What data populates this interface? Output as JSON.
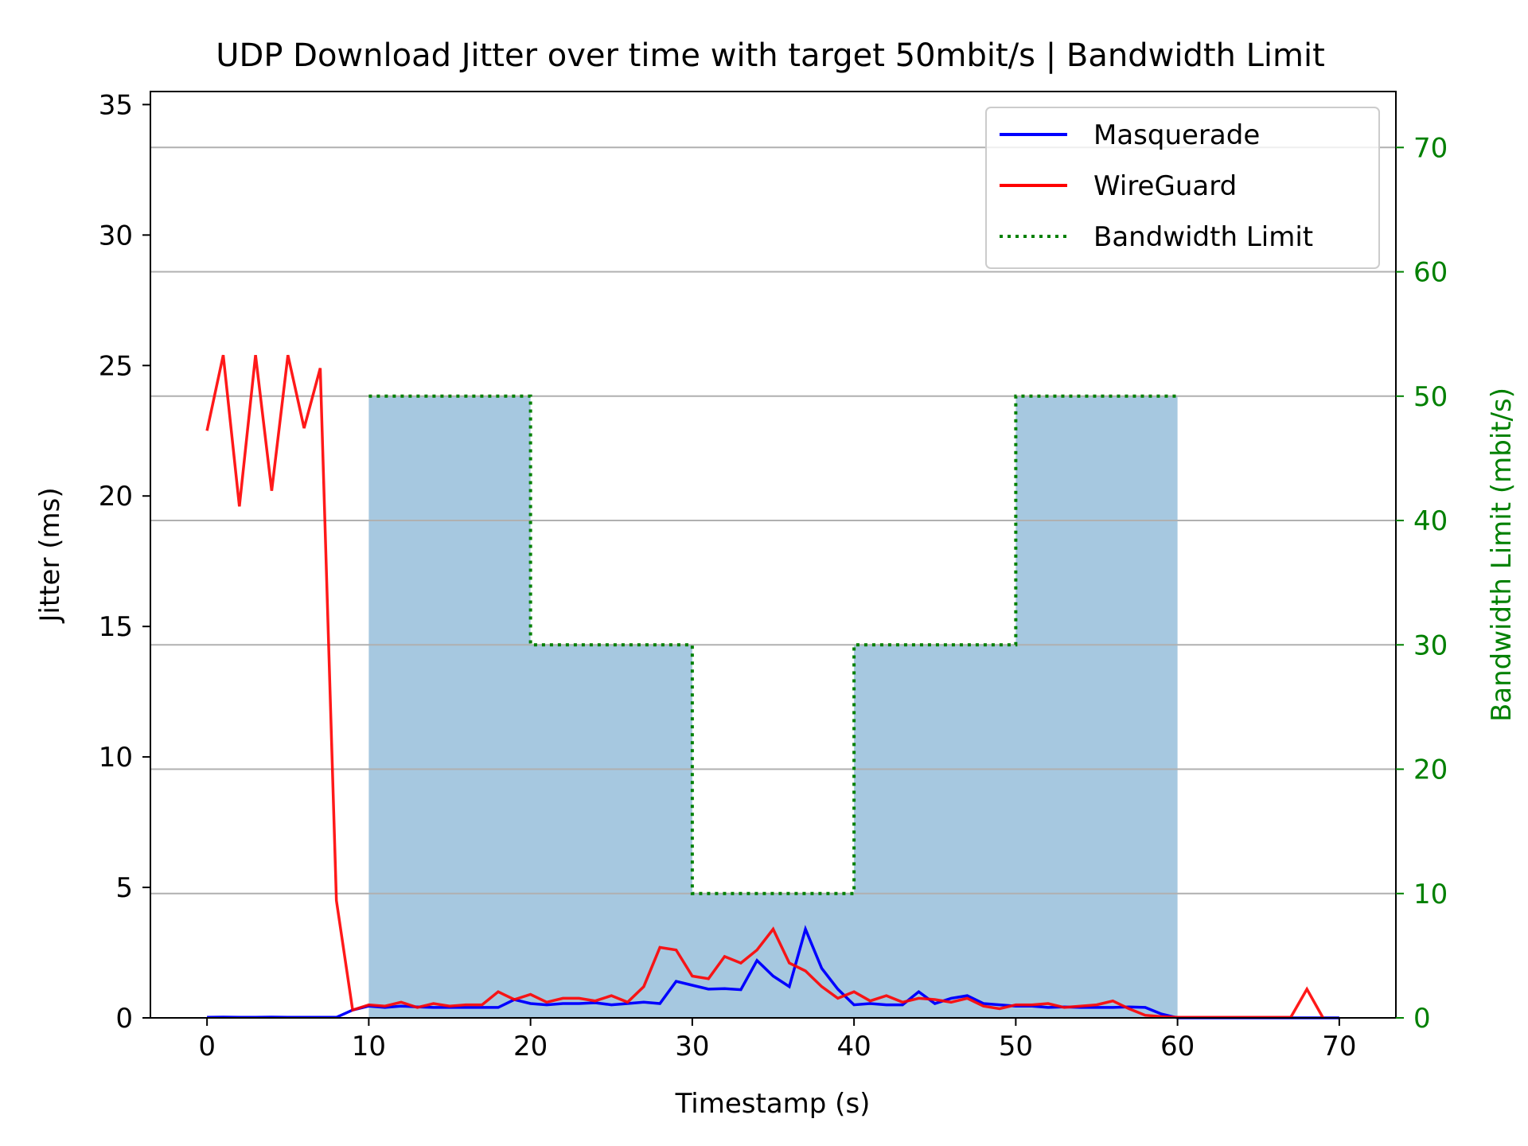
{
  "chart_data": {
    "type": "line",
    "title": "UDP Download Jitter over time with target 50mbit/s | Bandwidth Limit",
    "xlabel": "Timestamp (s)",
    "ylabel": "Jitter (ms)",
    "y2label": "Bandwidth Limit (mbit/s)",
    "xlim": [
      -3.5,
      73.5
    ],
    "ylim": [
      0,
      35.5
    ],
    "y2lim": [
      0,
      74.5
    ],
    "xticks": [
      0,
      10,
      20,
      30,
      40,
      50,
      60,
      70
    ],
    "yticks": [
      0,
      5,
      10,
      15,
      20,
      25,
      30,
      35
    ],
    "y2ticks": [
      0,
      10,
      20,
      30,
      40,
      50,
      60,
      70
    ],
    "grid": "horizontal, right axis",
    "legend_position": "top-right",
    "colors": {
      "masquerade": "#0000ff",
      "wireguard": "#ff0000",
      "limit": "#008000",
      "fill": "#a6c8e0",
      "grid": "#b0b0b0",
      "y2_axis": "#008000"
    },
    "series": [
      {
        "name": "Masquerade",
        "x": [
          0,
          1,
          2,
          3,
          4,
          5,
          6,
          7,
          8,
          9,
          10,
          11,
          12,
          13,
          14,
          15,
          16,
          17,
          18,
          19,
          20,
          21,
          22,
          23,
          24,
          25,
          26,
          27,
          28,
          29,
          30,
          31,
          32,
          33,
          34,
          35,
          36,
          37,
          38,
          39,
          40,
          41,
          42,
          43,
          44,
          45,
          46,
          47,
          48,
          49,
          50,
          51,
          52,
          53,
          54,
          55,
          56,
          57,
          58,
          59,
          60,
          61,
          62,
          63,
          64,
          65,
          66,
          67,
          68,
          69,
          70
        ],
        "y": [
          0.02,
          0.03,
          0.02,
          0.02,
          0.03,
          0.02,
          0.02,
          0.02,
          0.02,
          0.3,
          0.45,
          0.4,
          0.45,
          0.42,
          0.4,
          0.4,
          0.4,
          0.4,
          0.4,
          0.7,
          0.55,
          0.5,
          0.55,
          0.55,
          0.58,
          0.5,
          0.55,
          0.6,
          0.55,
          1.4,
          1.25,
          1.1,
          1.12,
          1.08,
          2.2,
          1.6,
          1.2,
          3.4,
          1.9,
          1.1,
          0.5,
          0.55,
          0.5,
          0.5,
          1.0,
          0.55,
          0.75,
          0.85,
          0.55,
          0.5,
          0.45,
          0.45,
          0.4,
          0.42,
          0.4,
          0.4,
          0.4,
          0.42,
          0.4,
          0.15,
          0.0,
          0.0,
          0.0,
          0.0,
          0.0,
          0.0,
          0.0,
          0.0,
          0.0,
          0.0,
          0.0
        ]
      },
      {
        "name": "WireGuard",
        "x": [
          0,
          1,
          2,
          3,
          4,
          5,
          6,
          7,
          8,
          9,
          10,
          11,
          12,
          13,
          14,
          15,
          16,
          17,
          18,
          19,
          20,
          21,
          22,
          23,
          24,
          25,
          26,
          27,
          28,
          29,
          30,
          31,
          32,
          33,
          34,
          35,
          36,
          37,
          38,
          39,
          40,
          41,
          42,
          43,
          44,
          45,
          46,
          47,
          48,
          49,
          50,
          51,
          52,
          53,
          54,
          55,
          56,
          57,
          58,
          59,
          60,
          61,
          62,
          63,
          64,
          65,
          66,
          67,
          68,
          69
        ],
        "y": [
          22.5,
          25.4,
          19.6,
          25.4,
          20.2,
          25.4,
          22.6,
          24.9,
          4.5,
          0.3,
          0.5,
          0.45,
          0.6,
          0.4,
          0.55,
          0.45,
          0.5,
          0.5,
          1.0,
          0.7,
          0.9,
          0.6,
          0.75,
          0.75,
          0.65,
          0.85,
          0.6,
          1.2,
          2.7,
          2.6,
          1.6,
          1.5,
          2.35,
          2.1,
          2.6,
          3.4,
          2.1,
          1.8,
          1.2,
          0.75,
          1.0,
          0.65,
          0.85,
          0.6,
          0.75,
          0.7,
          0.6,
          0.75,
          0.45,
          0.35,
          0.5,
          0.5,
          0.55,
          0.4,
          0.45,
          0.5,
          0.65,
          0.35,
          0.1,
          0.05,
          0.02,
          0.02,
          0.02,
          0.02,
          0.02,
          0.02,
          0.02,
          0.02,
          1.1,
          0.0
        ]
      },
      {
        "name": "Bandwidth Limit",
        "axis": "right",
        "style": "step-dotted",
        "x": [
          10,
          20,
          30,
          40,
          50,
          60
        ],
        "y": [
          50,
          30,
          10,
          30,
          50,
          50
        ]
      }
    ]
  }
}
